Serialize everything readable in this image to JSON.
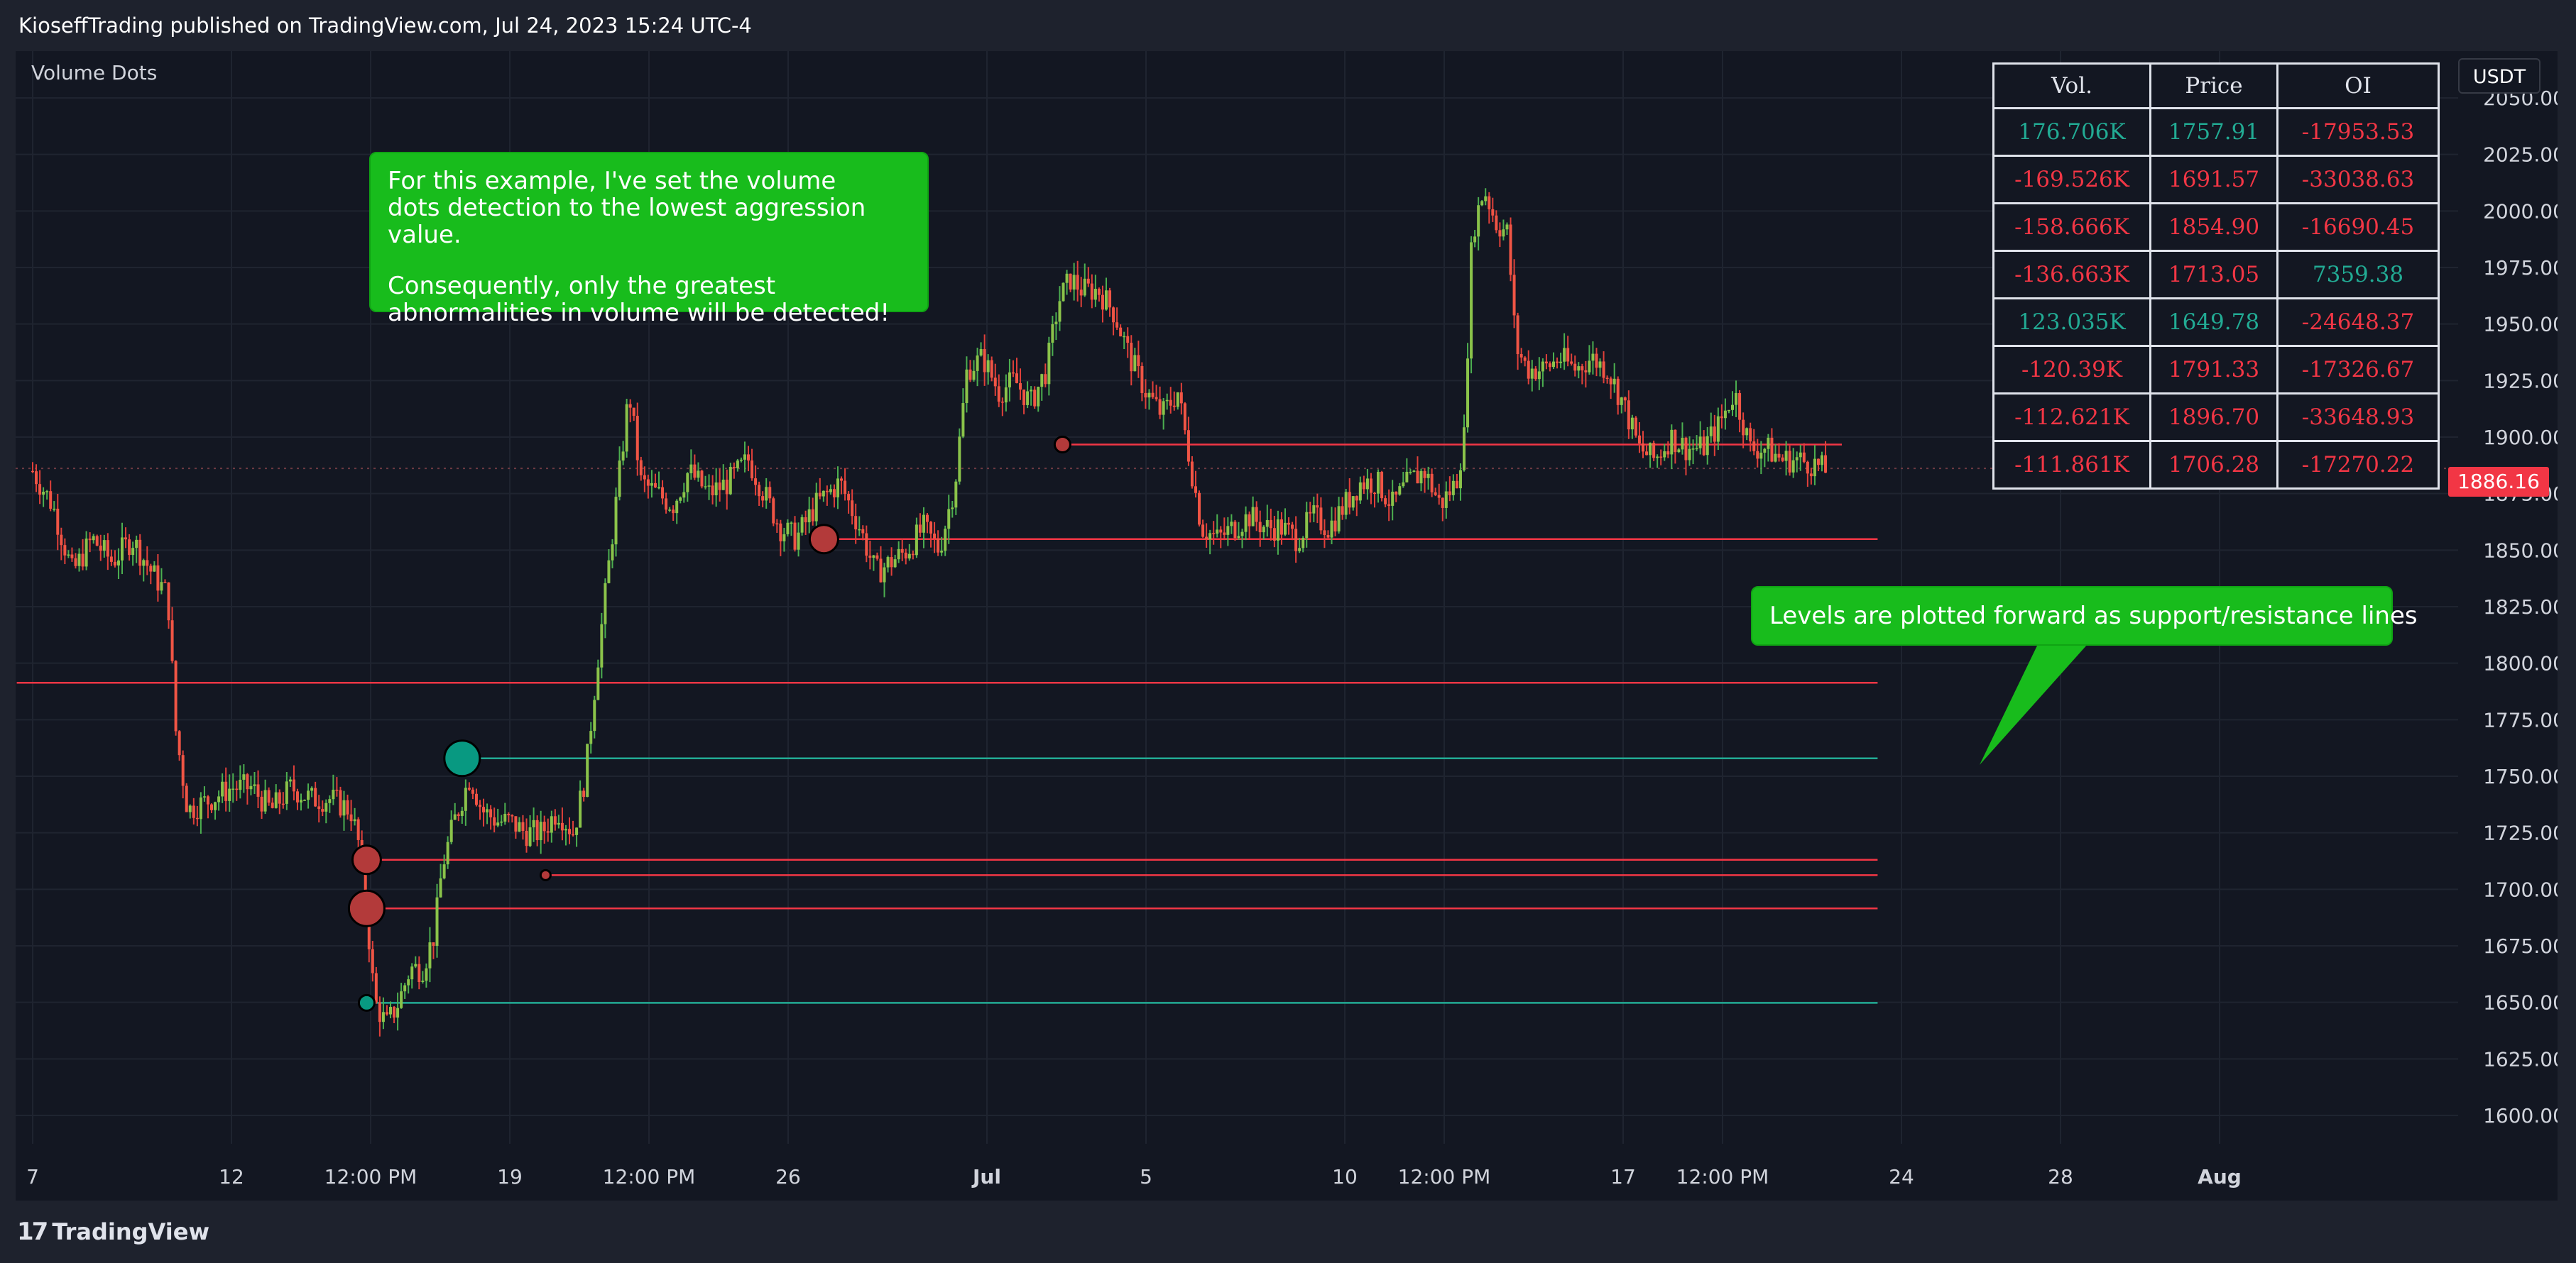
{
  "header": {
    "text": "KioseffTrading published on TradingView.com, Jul 24, 2023 15:24 UTC-4"
  },
  "footer": {
    "brand": "TradingView"
  },
  "indicator": {
    "name": "Volume Dots"
  },
  "currency": "USDT",
  "last_price": "1886.16",
  "colors": {
    "background": "#131722",
    "frame": "#1e222d",
    "up": "#22ab94",
    "down": "#f23645",
    "callout": "#18bc1c",
    "grid": "#1f2430",
    "axis_text": "#d1d4dc"
  },
  "callouts": {
    "top": {
      "line1": "For this example, I've set the volume",
      "line2": "dots detection to the lowest aggression value.",
      "line3": "Consequently, only the greatest",
      "line4": "abnormalities in volume will be detected!"
    },
    "right": {
      "text": "Levels are plotted forward as support/resistance lines"
    }
  },
  "table": {
    "headers": [
      "Vol.",
      "Price",
      "OI"
    ],
    "rows": [
      {
        "vol": "176.706K",
        "price": "1757.91",
        "oi": "-17953.53",
        "vol_sign": "pos",
        "price_sign": "pos",
        "oi_sign": "neg"
      },
      {
        "vol": "-169.526K",
        "price": "1691.57",
        "oi": "-33038.63",
        "vol_sign": "neg",
        "price_sign": "neg",
        "oi_sign": "neg"
      },
      {
        "vol": "-158.666K",
        "price": "1854.90",
        "oi": "-16690.45",
        "vol_sign": "neg",
        "price_sign": "neg",
        "oi_sign": "neg"
      },
      {
        "vol": "-136.663K",
        "price": "1713.05",
        "oi": "7359.38",
        "vol_sign": "neg",
        "price_sign": "neg",
        "oi_sign": "pos"
      },
      {
        "vol": "123.035K",
        "price": "1649.78",
        "oi": "-24648.37",
        "vol_sign": "pos",
        "price_sign": "pos",
        "oi_sign": "neg"
      },
      {
        "vol": "-120.39K",
        "price": "1791.33",
        "oi": "-17326.67",
        "vol_sign": "neg",
        "price_sign": "neg",
        "oi_sign": "neg"
      },
      {
        "vol": "-112.621K",
        "price": "1896.70",
        "oi": "-33648.93",
        "vol_sign": "neg",
        "price_sign": "neg",
        "oi_sign": "neg"
      },
      {
        "vol": "-111.861K",
        "price": "1706.28",
        "oi": "-17270.22",
        "vol_sign": "neg",
        "price_sign": "neg",
        "oi_sign": "neg"
      }
    ]
  },
  "chart_data": {
    "type": "candlestick",
    "ylim": [
      1590,
      2060
    ],
    "y_ticks": [
      1600,
      1625,
      1650,
      1675,
      1700,
      1725,
      1750,
      1775,
      1800,
      1825,
      1850,
      1875,
      1900,
      1925,
      1950,
      1975,
      2000,
      2025,
      2050
    ],
    "x_ticks": [
      {
        "label": "7",
        "t": 0.0
      },
      {
        "label": "12",
        "t": 5.0
      },
      {
        "label": "12:00 PM",
        "t": 8.5
      },
      {
        "label": "19",
        "t": 12.0
      },
      {
        "label": "12:00 PM",
        "t": 15.5
      },
      {
        "label": "26",
        "t": 19.0
      },
      {
        "label": "Jul",
        "t": 24.0
      },
      {
        "label": "5",
        "t": 28.0
      },
      {
        "label": "10",
        "t": 33.0
      },
      {
        "label": "12:00 PM",
        "t": 35.5
      },
      {
        "label": "17",
        "t": 40.0
      },
      {
        "label": "12:00 PM",
        "t": 42.5
      },
      {
        "label": "24",
        "t": 47.0
      },
      {
        "label": "28",
        "t": 51.0
      },
      {
        "label": "Aug",
        "t": 55.0
      }
    ],
    "xlim": [
      -0.4,
      57.5
    ],
    "x_unit": "days from Jun 7 2023",
    "price_path": [
      [
        0.0,
        1885
      ],
      [
        0.5,
        1870
      ],
      [
        1.0,
        1840
      ],
      [
        1.5,
        1855
      ],
      [
        2.0,
        1845
      ],
      [
        2.5,
        1855
      ],
      [
        3.0,
        1840
      ],
      [
        3.4,
        1830
      ],
      [
        3.6,
        1770
      ],
      [
        3.9,
        1735
      ],
      [
        4.5,
        1740
      ],
      [
        5.0,
        1745
      ],
      [
        5.5,
        1745
      ],
      [
        6.0,
        1735
      ],
      [
        6.5,
        1745
      ],
      [
        7.0,
        1740
      ],
      [
        7.5,
        1740
      ],
      [
        8.0,
        1735
      ],
      [
        8.2,
        1720
      ],
      [
        8.4,
        1690
      ],
      [
        8.6,
        1650
      ],
      [
        8.9,
        1640
      ],
      [
        9.2,
        1650
      ],
      [
        9.5,
        1665
      ],
      [
        9.8,
        1665
      ],
      [
        10.1,
        1680
      ],
      [
        10.3,
        1710
      ],
      [
        10.6,
        1730
      ],
      [
        11.0,
        1750
      ],
      [
        11.3,
        1735
      ],
      [
        11.7,
        1730
      ],
      [
        12.0,
        1730
      ],
      [
        12.4,
        1725
      ],
      [
        12.8,
        1725
      ],
      [
        13.2,
        1735
      ],
      [
        13.6,
        1725
      ],
      [
        13.9,
        1750
      ],
      [
        14.2,
        1800
      ],
      [
        14.6,
        1860
      ],
      [
        15.0,
        1920
      ],
      [
        15.3,
        1880
      ],
      [
        15.7,
        1875
      ],
      [
        16.1,
        1870
      ],
      [
        16.5,
        1885
      ],
      [
        17.0,
        1875
      ],
      [
        17.5,
        1880
      ],
      [
        18.0,
        1890
      ],
      [
        18.4,
        1875
      ],
      [
        18.8,
        1860
      ],
      [
        19.2,
        1855
      ],
      [
        19.7,
        1870
      ],
      [
        20.3,
        1880
      ],
      [
        20.8,
        1860
      ],
      [
        21.2,
        1840
      ],
      [
        21.6,
        1845
      ],
      [
        22.0,
        1850
      ],
      [
        22.4,
        1860
      ],
      [
        22.8,
        1850
      ],
      [
        23.2,
        1880
      ],
      [
        23.5,
        1930
      ],
      [
        23.9,
        1935
      ],
      [
        24.3,
        1920
      ],
      [
        24.7,
        1925
      ],
      [
        25.1,
        1915
      ],
      [
        25.5,
        1930
      ],
      [
        25.8,
        1960
      ],
      [
        26.1,
        1970
      ],
      [
        26.4,
        1965
      ],
      [
        26.8,
        1965
      ],
      [
        27.2,
        1955
      ],
      [
        27.6,
        1935
      ],
      [
        28.0,
        1920
      ],
      [
        28.4,
        1910
      ],
      [
        28.8,
        1920
      ],
      [
        29.1,
        1890
      ],
      [
        29.4,
        1860
      ],
      [
        29.8,
        1855
      ],
      [
        30.2,
        1860
      ],
      [
        30.6,
        1865
      ],
      [
        31.0,
        1860
      ],
      [
        31.4,
        1860
      ],
      [
        31.8,
        1855
      ],
      [
        32.2,
        1865
      ],
      [
        32.6,
        1860
      ],
      [
        33.0,
        1870
      ],
      [
        33.4,
        1880
      ],
      [
        33.8,
        1880
      ],
      [
        34.2,
        1870
      ],
      [
        34.6,
        1880
      ],
      [
        35.0,
        1885
      ],
      [
        35.4,
        1870
      ],
      [
        35.8,
        1880
      ],
      [
        36.0,
        1900
      ],
      [
        36.2,
        1990
      ],
      [
        36.5,
        2010
      ],
      [
        36.8,
        1995
      ],
      [
        37.1,
        1990
      ],
      [
        37.3,
        1940
      ],
      [
        37.6,
        1930
      ],
      [
        38.0,
        1930
      ],
      [
        38.4,
        1935
      ],
      [
        38.8,
        1930
      ],
      [
        39.2,
        1935
      ],
      [
        39.6,
        1930
      ],
      [
        40.0,
        1915
      ],
      [
        40.4,
        1895
      ],
      [
        40.8,
        1890
      ],
      [
        41.2,
        1900
      ],
      [
        41.6,
        1895
      ],
      [
        42.0,
        1895
      ],
      [
        42.4,
        1905
      ],
      [
        42.8,
        1920
      ],
      [
        43.2,
        1895
      ],
      [
        43.6,
        1895
      ],
      [
        44.0,
        1890
      ],
      [
        44.4,
        1890
      ],
      [
        44.8,
        1888
      ],
      [
        45.1,
        1885
      ]
    ],
    "levels": [
      {
        "price": 1896.7,
        "start": 25.9,
        "end": 45.5,
        "color": "down"
      },
      {
        "price": 1854.9,
        "start": 19.9,
        "end": 46.4,
        "color": "down"
      },
      {
        "price": 1791.33,
        "start": -0.4,
        "end": 46.4,
        "color": "down"
      },
      {
        "price": 1757.91,
        "start": 10.8,
        "end": 46.4,
        "color": "up"
      },
      {
        "price": 1713.05,
        "start": 8.4,
        "end": 46.4,
        "color": "down"
      },
      {
        "price": 1706.28,
        "start": 12.9,
        "end": 46.4,
        "color": "down"
      },
      {
        "price": 1691.57,
        "start": 8.4,
        "end": 46.4,
        "color": "down"
      },
      {
        "price": 1649.78,
        "start": 8.4,
        "end": 46.4,
        "color": "up"
      }
    ],
    "dots": [
      {
        "t": 10.8,
        "price": 1757.91,
        "size": 3,
        "color": "up"
      },
      {
        "t": 8.4,
        "price": 1691.57,
        "size": 3,
        "color": "down"
      },
      {
        "t": 19.9,
        "price": 1854.9,
        "size": 2,
        "color": "down"
      },
      {
        "t": 8.4,
        "price": 1713.05,
        "size": 2,
        "color": "down"
      },
      {
        "t": 8.4,
        "price": 1649.78,
        "size": 1,
        "color": "up"
      },
      {
        "t": 25.9,
        "price": 1896.7,
        "size": 1,
        "color": "down"
      },
      {
        "t": 12.9,
        "price": 1706.28,
        "size": 0,
        "color": "down"
      }
    ],
    "last_price": 1886.16,
    "grid": true,
    "legend": "none"
  }
}
